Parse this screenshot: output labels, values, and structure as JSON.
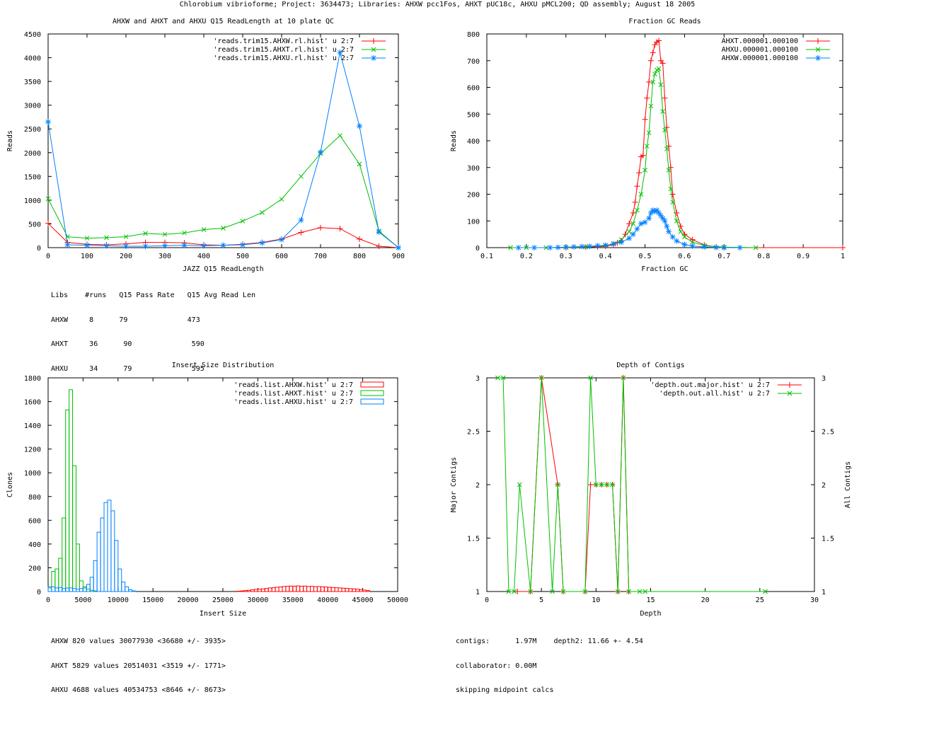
{
  "page_title": "Chlorobium vibrioforme; Project: 3634473; Libraries: AHXW pcc1Fos, AHXT pUC18c, AHXU pMCL200; QD assembly; August 18 2005",
  "colors": {
    "red": "#ff0000",
    "green": "#00c000",
    "blue": "#0080ff"
  },
  "chart_data": [
    {
      "id": "readlength",
      "type": "line",
      "title": "AHXW and AHXT and AHXU Q15 ReadLength at 10 plate QC",
      "xlabel": "JAZZ Q15 ReadLength",
      "ylabel": "Reads",
      "xlim": [
        0,
        900
      ],
      "ylim": [
        0,
        4500
      ],
      "xticks": [
        0,
        100,
        200,
        300,
        400,
        500,
        600,
        700,
        800,
        900
      ],
      "yticks": [
        0,
        500,
        1000,
        1500,
        2000,
        2500,
        3000,
        3500,
        4000,
        4500
      ],
      "legend_position": "top-right",
      "series": [
        {
          "name": "'reads.trim15.AHXW.rl.hist' u 2:7",
          "color": "#ff0000",
          "marker": "plus",
          "x": [
            0,
            50,
            100,
            150,
            200,
            250,
            300,
            350,
            400,
            450,
            500,
            550,
            600,
            650,
            700,
            750,
            800,
            850,
            900
          ],
          "y": [
            510,
            110,
            70,
            60,
            80,
            110,
            110,
            100,
            60,
            50,
            70,
            110,
            180,
            320,
            420,
            400,
            180,
            30,
            0
          ]
        },
        {
          "name": "'reads.trim15.AHXT.rl.hist' u 2:7",
          "color": "#00c000",
          "marker": "x",
          "x": [
            0,
            50,
            100,
            150,
            200,
            250,
            300,
            350,
            400,
            450,
            500,
            550,
            600,
            650,
            700,
            750,
            800,
            850,
            900
          ],
          "y": [
            1030,
            230,
            200,
            210,
            230,
            300,
            280,
            310,
            380,
            410,
            560,
            740,
            1020,
            1500,
            1980,
            2360,
            1760,
            350,
            0
          ]
        },
        {
          "name": "'reads.trim15.AHXU.rl.hist' u 2:7",
          "color": "#0080ff",
          "marker": "star",
          "x": [
            0,
            50,
            100,
            150,
            200,
            250,
            300,
            350,
            400,
            450,
            500,
            550,
            600,
            650,
            700,
            750,
            800,
            850,
            900
          ],
          "y": [
            2650,
            60,
            50,
            40,
            30,
            30,
            40,
            50,
            40,
            50,
            60,
            100,
            170,
            580,
            2010,
            4110,
            2560,
            330,
            0
          ]
        }
      ],
      "stats_lines": [
        "Libs    #runs   Q15 Pass Rate   Q15 Avg Read Len",
        "AHXW     8      79              473",
        "AHXT     36      90              590",
        "AHXU     34      79              595"
      ]
    },
    {
      "id": "gc",
      "type": "line",
      "title": "Fraction GC Reads",
      "xlabel": "Fraction GC",
      "ylabel": "Reads",
      "xlim": [
        0.1,
        1
      ],
      "ylim": [
        0,
        800
      ],
      "xticks": [
        0.1,
        0.2,
        0.3,
        0.4,
        0.5,
        0.6,
        0.7,
        0.8,
        0.9,
        1
      ],
      "yticks": [
        0,
        100,
        200,
        300,
        400,
        500,
        600,
        700,
        800
      ],
      "legend_position": "top-right",
      "series": [
        {
          "name": "AHXT.000001.000100",
          "color": "#ff0000",
          "marker": "plus",
          "x": [
            0.3,
            0.35,
            0.38,
            0.4,
            0.42,
            0.43,
            0.44,
            0.45,
            0.46,
            0.47,
            0.475,
            0.48,
            0.485,
            0.49,
            0.495,
            0.5,
            0.505,
            0.51,
            0.515,
            0.52,
            0.525,
            0.53,
            0.535,
            0.54,
            0.545,
            0.55,
            0.555,
            0.56,
            0.565,
            0.57,
            0.58,
            0.59,
            0.6,
            0.62,
            0.65,
            0.68,
            0.7,
            1.0
          ],
          "y": [
            0,
            2,
            3,
            5,
            10,
            18,
            25,
            50,
            90,
            130,
            170,
            230,
            280,
            340,
            345,
            480,
            560,
            620,
            700,
            730,
            760,
            770,
            775,
            700,
            690,
            560,
            450,
            380,
            300,
            200,
            130,
            80,
            50,
            30,
            10,
            3,
            0,
            0
          ]
        },
        {
          "name": "AHXU.000001.000100",
          "color": "#00c000",
          "marker": "x",
          "x": [
            0.16,
            0.2,
            0.25,
            0.3,
            0.35,
            0.4,
            0.42,
            0.44,
            0.46,
            0.47,
            0.48,
            0.49,
            0.5,
            0.505,
            0.51,
            0.515,
            0.52,
            0.525,
            0.53,
            0.535,
            0.54,
            0.545,
            0.55,
            0.555,
            0.56,
            0.565,
            0.57,
            0.58,
            0.59,
            0.6,
            0.62,
            0.65,
            0.7,
            0.78
          ],
          "y": [
            0,
            0,
            0,
            1,
            3,
            8,
            15,
            30,
            60,
            90,
            140,
            200,
            290,
            380,
            430,
            530,
            620,
            650,
            665,
            670,
            610,
            510,
            440,
            370,
            290,
            220,
            170,
            100,
            60,
            40,
            20,
            8,
            2,
            0
          ],
          "points": [
            [
              0.16,
              0
            ],
            [
              0.2,
              0
            ],
            [
              0.25,
              0
            ],
            [
              0.3,
              1
            ],
            [
              0.35,
              3
            ],
            [
              0.4,
              8
            ],
            [
              0.42,
              15
            ],
            [
              0.44,
              30
            ],
            [
              0.46,
              60
            ],
            [
              0.47,
              90
            ],
            [
              0.48,
              140
            ],
            [
              0.49,
              200
            ],
            [
              0.5,
              290
            ],
            [
              0.505,
              380
            ],
            [
              0.51,
              430
            ],
            [
              0.515,
              530
            ],
            [
              0.52,
              620
            ],
            [
              0.525,
              650
            ],
            [
              0.53,
              665
            ],
            [
              0.535,
              670
            ],
            [
              0.54,
              610
            ],
            [
              0.545,
              510
            ],
            [
              0.55,
              440
            ],
            [
              0.555,
              370
            ],
            [
              0.56,
              290
            ],
            [
              0.565,
              220
            ],
            [
              0.57,
              170
            ],
            [
              0.58,
              100
            ],
            [
              0.59,
              60
            ],
            [
              0.6,
              40
            ],
            [
              0.62,
              20
            ],
            [
              0.65,
              8
            ],
            [
              0.7,
              2
            ],
            [
              0.78,
              0
            ]
          ]
        },
        {
          "name": "AHXW.000001.000100",
          "color": "#0080ff",
          "marker": "star",
          "x": [
            0.18,
            0.22,
            0.26,
            0.28,
            0.3,
            0.32,
            0.34,
            0.36,
            0.38,
            0.4,
            0.42,
            0.44,
            0.46,
            0.47,
            0.48,
            0.49,
            0.5,
            0.51,
            0.515,
            0.52,
            0.525,
            0.53,
            0.535,
            0.54,
            0.545,
            0.55,
            0.555,
            0.56,
            0.57,
            0.58,
            0.6,
            0.62,
            0.65,
            0.68,
            0.7,
            0.74
          ],
          "y": [
            0,
            0,
            0,
            1,
            2,
            3,
            4,
            5,
            7,
            9,
            14,
            20,
            35,
            50,
            70,
            90,
            95,
            110,
            130,
            140,
            135,
            140,
            130,
            120,
            110,
            100,
            80,
            60,
            40,
            25,
            12,
            6,
            3,
            1,
            0,
            0
          ]
        }
      ]
    },
    {
      "id": "insert",
      "type": "bar",
      "title": "Insert Size Distribution",
      "xlabel": "Insert Size",
      "ylabel": "Clones",
      "xlim": [
        0,
        50000
      ],
      "ylim": [
        0,
        1800
      ],
      "xticks": [
        0,
        5000,
        10000,
        15000,
        20000,
        25000,
        30000,
        35000,
        40000,
        45000,
        50000
      ],
      "yticks": [
        0,
        200,
        400,
        600,
        800,
        1000,
        1200,
        1400,
        1600,
        1800
      ],
      "legend_position": "top-right",
      "bin_width": 500,
      "series": [
        {
          "name": "'reads.list.AHXW.hist' u 2:7",
          "color": "#ff0000",
          "x": [
            27000,
            27500,
            28000,
            28500,
            29000,
            29500,
            30000,
            30500,
            31000,
            31500,
            32000,
            32500,
            33000,
            33500,
            34000,
            34500,
            35000,
            35500,
            36000,
            36500,
            37000,
            37500,
            38000,
            38500,
            39000,
            39500,
            40000,
            40500,
            41000,
            41500,
            42000,
            42500,
            43000,
            43500,
            44000,
            44500,
            45000,
            45500
          ],
          "y": [
            3,
            5,
            8,
            10,
            14,
            18,
            20,
            22,
            26,
            30,
            32,
            36,
            38,
            42,
            44,
            46,
            45,
            47,
            44,
            46,
            42,
            44,
            40,
            42,
            40,
            38,
            36,
            34,
            32,
            30,
            28,
            26,
            24,
            22,
            20,
            16,
            12,
            8
          ]
        },
        {
          "name": "'reads.list.AHXT.hist' u 2:7",
          "color": "#00c000",
          "x": [
            0,
            500,
            1000,
            1500,
            2000,
            2500,
            3000,
            3500,
            4000,
            4500,
            5000,
            5500,
            6000,
            6500
          ],
          "y": [
            30,
            170,
            190,
            280,
            620,
            1530,
            1700,
            1060,
            400,
            90,
            40,
            20,
            10,
            5
          ]
        },
        {
          "name": "'reads.list.AHXU.hist' u 2:7",
          "color": "#0080ff",
          "x": [
            0,
            500,
            1000,
            1500,
            2000,
            2500,
            3000,
            3500,
            4000,
            4500,
            5000,
            5500,
            6000,
            6500,
            7000,
            7500,
            8000,
            8500,
            9000,
            9500,
            10000,
            10500,
            11000,
            11500,
            12000
          ],
          "y": [
            40,
            40,
            30,
            35,
            25,
            30,
            30,
            25,
            20,
            25,
            30,
            60,
            120,
            260,
            500,
            620,
            750,
            770,
            680,
            430,
            190,
            80,
            40,
            15,
            5
          ]
        }
      ],
      "stats_lines": [
        "AHXW 820 values 30077930 <36680 +/- 3935>",
        "AHXT 5829 values 20514031 <3519 +/- 1771>",
        "AHXU 4688 values 40534753 <8646 +/- 8673>"
      ]
    },
    {
      "id": "depth",
      "type": "line",
      "title": "Depth of Contigs",
      "xlabel": "Depth",
      "ylabel": "Major Contigs",
      "y2label": "All Contigs",
      "xlim": [
        0,
        30
      ],
      "ylim": [
        1,
        3
      ],
      "xticks": [
        0,
        5,
        10,
        15,
        20,
        25,
        30
      ],
      "yticks": [
        1,
        1.5,
        2,
        2.5,
        3
      ],
      "ytick_labels": [
        "1",
        "1.5",
        "2",
        "2.5",
        "3"
      ],
      "legend_position": "top-right",
      "series": [
        {
          "name": "'depth.out.major.hist' u 2:7",
          "color": "#ff0000",
          "marker": "plus",
          "x": [
            2.8,
            4,
            5,
            6.5,
            7,
            9,
            9.5,
            10,
            10.5,
            11,
            11.5,
            12,
            12.5,
            13
          ],
          "y": [
            1,
            1,
            3,
            2,
            1,
            1,
            2,
            2,
            2,
            2,
            2,
            1,
            3,
            1
          ]
        },
        {
          "name": "'depth.out.all.hist' u 2:7",
          "color": "#00c000",
          "marker": "x",
          "x": [
            1,
            1.5,
            2,
            2.5,
            3,
            4,
            5,
            6,
            6.5,
            7,
            9,
            9.5,
            10,
            10.5,
            11,
            11.5,
            12,
            12.5,
            13,
            14,
            14.5,
            25.5
          ],
          "y": [
            3,
            3,
            1,
            1,
            2,
            1,
            3,
            1,
            2,
            1,
            1,
            3,
            2,
            2,
            2,
            2,
            1,
            3,
            1,
            1,
            1,
            1
          ]
        }
      ],
      "stats_lines": [
        "contigs:      1.97M    depth2: 11.66 +- 4.54",
        "collaborator: 0.00M",
        "skipping midpoint calcs"
      ]
    }
  ]
}
